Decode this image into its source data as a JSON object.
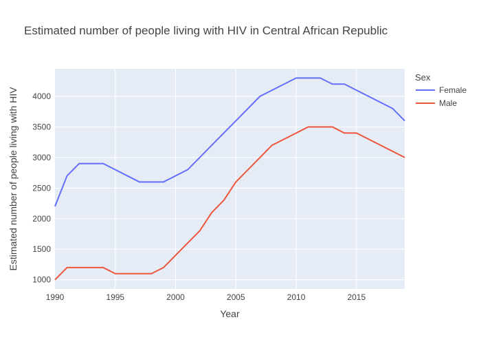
{
  "chart_data": {
    "type": "line",
    "title": "Estimated number of people living with HIV in Central African Republic",
    "xlabel": "Year",
    "ylabel": "Estimated number of people living with HIV",
    "xlim": [
      1990,
      2019
    ],
    "ylim": [
      850,
      4450
    ],
    "xticks": [
      1990,
      1995,
      2000,
      2005,
      2010,
      2015
    ],
    "yticks": [
      1000,
      1500,
      2000,
      2500,
      3000,
      3500,
      4000
    ],
    "grid": true,
    "legend": {
      "title": "Sex",
      "position": "top-right"
    },
    "x": [
      1990,
      1991,
      1992,
      1993,
      1994,
      1995,
      1996,
      1997,
      1998,
      1999,
      2000,
      2001,
      2002,
      2003,
      2004,
      2005,
      2006,
      2007,
      2008,
      2009,
      2010,
      2011,
      2012,
      2013,
      2014,
      2015,
      2016,
      2017,
      2018,
      2019
    ],
    "series": [
      {
        "name": "Female",
        "color": "#636efa",
        "values": [
          2200,
          2700,
          2900,
          2900,
          2900,
          2800,
          2700,
          2600,
          2600,
          2600,
          2700,
          2800,
          3000,
          3200,
          3400,
          3600,
          3800,
          4000,
          4100,
          4200,
          4300,
          4300,
          4300,
          4200,
          4200,
          4100,
          4000,
          3900,
          3800,
          3600
        ]
      },
      {
        "name": "Male",
        "color": "#ef553b",
        "values": [
          1000,
          1200,
          1200,
          1200,
          1200,
          1100,
          1100,
          1100,
          1100,
          1200,
          1400,
          1600,
          1800,
          2100,
          2300,
          2600,
          2800,
          3000,
          3200,
          3300,
          3400,
          3500,
          3500,
          3500,
          3400,
          3400,
          3300,
          3200,
          3100,
          3000
        ]
      }
    ]
  }
}
